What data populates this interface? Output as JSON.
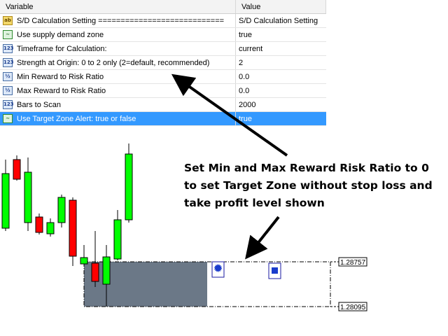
{
  "properties": {
    "columns": {
      "variable": "Variable",
      "value": "Value"
    },
    "rows": [
      {
        "icon": "ab-string-icon",
        "variable": "S/D Calculation Setting ============================",
        "value": "S/D Calculation Setting"
      },
      {
        "icon": "bool-icon",
        "variable": "Use supply demand zone",
        "value": "true"
      },
      {
        "icon": "int-icon",
        "variable": "Timeframe for Calculation:",
        "value": "current"
      },
      {
        "icon": "int-icon",
        "variable": "Strength at Origin: 0 to 2 only (2=default, recommended)",
        "value": "2"
      },
      {
        "icon": "double-icon",
        "variable": "Min Reward to Risk Ratio",
        "value": "0.0"
      },
      {
        "icon": "double-icon",
        "variable": "Max Reward to Risk Ratio",
        "value": "0.0"
      },
      {
        "icon": "int-icon",
        "variable": "Bars to Scan",
        "value": "2000"
      },
      {
        "icon": "bool-icon",
        "variable": "Use Target Zone Alert: true or false",
        "value": "true",
        "selected": true
      }
    ]
  },
  "icon_glyphs": {
    "ab-string-icon": "ab",
    "bool-icon": "~",
    "int-icon": "123",
    "double-icon": "½"
  },
  "annotation": {
    "lines": [
      "Set Min and Max Reward Risk Ratio to 0",
      "to set Target Zone without stop loss and",
      "take profit level shown"
    ]
  },
  "chart": {
    "price_labels": [
      "1.28757",
      "1.28095"
    ],
    "bull_color": "#00ff00",
    "bear_color": "#ff0000",
    "zone_color": "#6b7887"
  }
}
